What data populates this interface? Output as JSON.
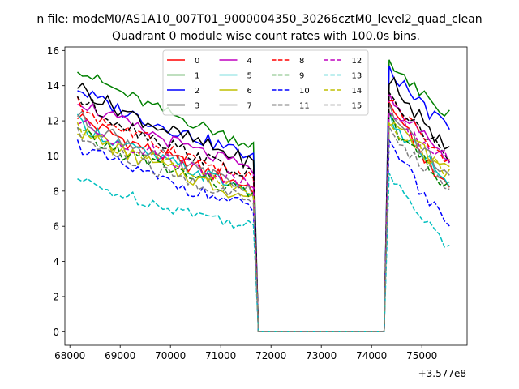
{
  "chart_data": {
    "type": "line",
    "suptitle": "n file: modeM0/AS1A10_007T01_9000004350_30266cztM0_level2_quad_clean",
    "title": "Quadrant 0 module wise count rates with 100.0s bins.",
    "xlabel": "",
    "ylabel": "",
    "x_offset_label": "+3.577e8",
    "xlim": [
      67900,
      75900
    ],
    "ylim": [
      -0.77,
      16.2
    ],
    "xticks": [
      68000,
      69000,
      70000,
      71000,
      72000,
      73000,
      74000,
      75000
    ],
    "yticks": [
      0,
      2,
      4,
      6,
      8,
      10,
      12,
      14,
      16
    ],
    "legend_position": "upper-center",
    "x": [
      68150,
      68250,
      68350,
      68450,
      68550,
      68650,
      68750,
      68850,
      68950,
      69050,
      69150,
      69250,
      69350,
      69450,
      69550,
      69650,
      69750,
      69850,
      69950,
      70050,
      70150,
      70250,
      70350,
      70450,
      70550,
      70650,
      70750,
      70850,
      70950,
      71050,
      71150,
      71250,
      71350,
      71450,
      71550,
      71650,
      71750,
      71850,
      71950,
      72050,
      72150,
      72250,
      72350,
      72450,
      72550,
      72650,
      72750,
      72850,
      72950,
      73050,
      73150,
      73250,
      73350,
      73450,
      73550,
      73650,
      73750,
      73850,
      73950,
      74050,
      74150,
      74250,
      74350,
      74450,
      74550,
      74650,
      74750,
      74850,
      74950,
      75050,
      75150,
      75250,
      75350,
      75450,
      75550
    ],
    "series": [
      {
        "name": "0",
        "color": "#ff0000",
        "dash": "solid",
        "start": 12.4,
        "end": 8.2,
        "shift": 0.0,
        "post": 13.1,
        "post_end": 8.0,
        "amp": 0.45
      },
      {
        "name": "1",
        "color": "#008000",
        "dash": "solid",
        "start": 15.1,
        "end": 10.6,
        "shift": 0.0,
        "post": 15.2,
        "post_end": 12.4,
        "amp": 0.35
      },
      {
        "name": "2",
        "color": "#0000ff",
        "dash": "solid",
        "start": 13.9,
        "end": 10.0,
        "shift": 0.0,
        "post": 14.9,
        "post_end": 11.4,
        "amp": 0.4
      },
      {
        "name": "3",
        "color": "#000000",
        "dash": "solid",
        "start": 14.1,
        "end": 9.6,
        "shift": 0.0,
        "post": 14.5,
        "post_end": 10.2,
        "amp": 0.45
      },
      {
        "name": "4",
        "color": "#bf00bf",
        "dash": "solid",
        "start": 13.3,
        "end": 9.2,
        "shift": 0.0,
        "post": 13.4,
        "post_end": 9.6,
        "amp": 0.4
      },
      {
        "name": "5",
        "color": "#00bfbf",
        "dash": "solid",
        "start": 12.0,
        "end": 8.0,
        "shift": 0.0,
        "post": 12.2,
        "post_end": 8.6,
        "amp": 0.4
      },
      {
        "name": "6",
        "color": "#bfbf00",
        "dash": "solid",
        "start": 11.6,
        "end": 7.6,
        "shift": 0.0,
        "post": 11.8,
        "post_end": 9.2,
        "amp": 0.45
      },
      {
        "name": "7",
        "color": "#808080",
        "dash": "solid",
        "start": 12.4,
        "end": 8.0,
        "shift": 0.0,
        "post": 12.6,
        "post_end": 8.8,
        "amp": 0.45
      },
      {
        "name": "8",
        "color": "#ff0000",
        "dash": "dashed",
        "start": 13.0,
        "end": 8.6,
        "shift": 0.0,
        "post": 13.3,
        "post_end": 9.6,
        "amp": 0.45
      },
      {
        "name": "9",
        "color": "#008000",
        "dash": "dashed",
        "start": 11.4,
        "end": 7.8,
        "shift": 0.0,
        "post": 12.0,
        "post_end": 8.2,
        "amp": 0.45
      },
      {
        "name": "10",
        "color": "#0000ff",
        "dash": "dashed",
        "start": 10.7,
        "end": 7.0,
        "shift": 0.0,
        "post": 11.0,
        "post_end": 5.8,
        "amp": 0.4
      },
      {
        "name": "11",
        "color": "#000000",
        "dash": "dashed",
        "start": 13.4,
        "end": 8.8,
        "shift": 0.0,
        "post": 13.7,
        "post_end": 9.8,
        "amp": 0.45
      },
      {
        "name": "12",
        "color": "#bf00bf",
        "dash": "dashed",
        "start": 12.0,
        "end": 8.4,
        "shift": 0.0,
        "post": 12.4,
        "post_end": 9.8,
        "amp": 0.45
      },
      {
        "name": "13",
        "color": "#00bfbf",
        "dash": "dashed",
        "start": 8.7,
        "end": 6.0,
        "shift": 0.0,
        "post": 9.0,
        "post_end": 4.7,
        "amp": 0.35
      },
      {
        "name": "14",
        "color": "#bfbf00",
        "dash": "dashed",
        "start": 11.8,
        "end": 7.8,
        "shift": 0.0,
        "post": 11.9,
        "post_end": 9.0,
        "amp": 0.45
      },
      {
        "name": "15",
        "color": "#808080",
        "dash": "dashed",
        "start": 11.2,
        "end": 7.4,
        "shift": 0.0,
        "post": 11.4,
        "post_end": 8.2,
        "amp": 0.45
      }
    ],
    "gap_start": 71750,
    "gap_end": 74250,
    "gap_value": 0
  }
}
